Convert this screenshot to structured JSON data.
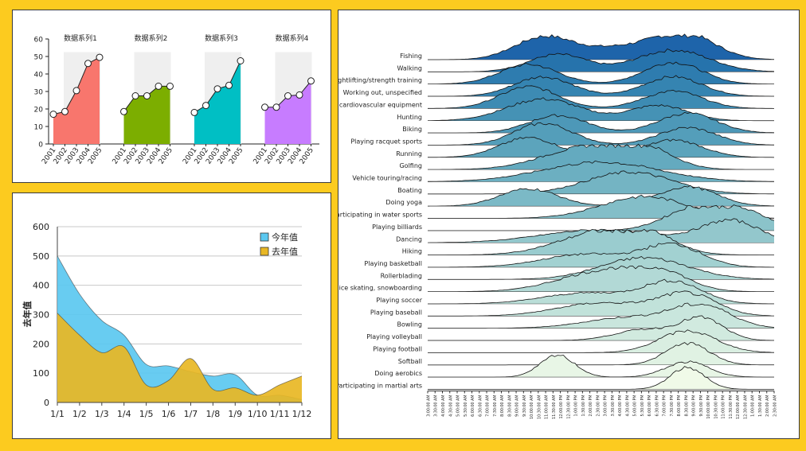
{
  "colors": {
    "background": "#FCCB1F"
  },
  "chart_data": [
    {
      "type": "area",
      "id": "small-multiples",
      "categories": [
        "2001",
        "2002",
        "2003",
        "2004",
        "2005"
      ],
      "series": [
        {
          "name": "数据系列1",
          "values": [
            17,
            18.5,
            30.5,
            46,
            49.5
          ],
          "color": "#F8766D"
        },
        {
          "name": "数据系列2",
          "values": [
            18.5,
            27.5,
            27.5,
            33,
            33
          ],
          "color": "#7CAE00"
        },
        {
          "name": "数据系列3",
          "values": [
            18,
            22,
            31.5,
            33.5,
            47.5
          ],
          "color": "#00BFC4"
        },
        {
          "name": "数据系列4",
          "values": [
            21,
            21,
            27.5,
            28,
            36
          ],
          "color": "#C77CFF"
        }
      ],
      "ylim": [
        0,
        60
      ],
      "yticks": [
        0,
        10,
        20,
        30,
        40,
        50,
        60
      ]
    },
    {
      "type": "area",
      "id": "monthly-area",
      "categories": [
        "1/1",
        "1/2",
        "1/3",
        "1/4",
        "1/5",
        "1/6",
        "1/7",
        "1/8",
        "1/9",
        "1/10",
        "1/11",
        "1/12"
      ],
      "series": [
        {
          "name": "今年值",
          "values": [
            500,
            370,
            280,
            230,
            130,
            125,
            105,
            90,
            95,
            25,
            25,
            10
          ],
          "color": "#5BC8F0"
        },
        {
          "name": "去年值",
          "values": [
            305,
            230,
            170,
            190,
            60,
            75,
            150,
            45,
            50,
            25,
            60,
            90
          ],
          "color": "#E8B724"
        }
      ],
      "ylabel": "去年值",
      "ylim": [
        0,
        600
      ],
      "yticks": [
        0,
        100,
        200,
        300,
        400,
        500,
        600
      ],
      "legend": "top-right"
    },
    {
      "type": "area",
      "id": "ridgeline",
      "title": "",
      "activities": [
        "Fishing",
        "Walking",
        "Weightlifting/strength training",
        "Working out, unspecified",
        "Using cardiovascular equipment",
        "Hunting",
        "Biking",
        "Playing racquet sports",
        "Running",
        "Golfing",
        "Vehicle touring/racing",
        "Boating",
        "Doing yoga",
        "Participating in water sports",
        "Playing billiards",
        "Dancing",
        "Hiking",
        "Playing basketball",
        "Rollerblading",
        "Skiing, ice skating, snowboarding",
        "Playing soccer",
        "Playing baseball",
        "Bowling",
        "Playing volleyball",
        "Playing football",
        "Softball",
        "Doing aerobics",
        "Participating in martial arts"
      ],
      "peaks": [
        [
          [
            8,
            2,
            1.0
          ],
          [
            18,
            2,
            1.0
          ],
          [
            14,
            3,
            0.6
          ]
        ],
        [
          [
            9,
            2,
            0.8
          ],
          [
            17,
            2.5,
            1.0
          ]
        ],
        [
          [
            7,
            2,
            0.9
          ],
          [
            17,
            2,
            1.0
          ]
        ],
        [
          [
            8,
            2,
            0.9
          ],
          [
            17,
            2,
            0.9
          ]
        ],
        [
          [
            7,
            2,
            1.0
          ],
          [
            17,
            2,
            0.8
          ]
        ],
        [
          [
            8,
            2.5,
            1.0
          ],
          [
            16,
            2,
            0.7
          ]
        ],
        [
          [
            9,
            2,
            0.8
          ],
          [
            18,
            2,
            0.9
          ]
        ],
        [
          [
            8,
            2,
            1.0
          ],
          [
            18,
            2,
            0.8
          ]
        ],
        [
          [
            7,
            2,
            0.9
          ],
          [
            17,
            2,
            0.8
          ]
        ],
        [
          [
            11,
            3,
            1.0
          ],
          [
            15,
            2,
            0.8
          ]
        ],
        [
          [
            12,
            4,
            0.9
          ]
        ],
        [
          [
            14,
            3,
            1.0
          ]
        ],
        [
          [
            7,
            2,
            0.8
          ],
          [
            18,
            2,
            0.9
          ]
        ],
        [
          [
            15,
            3,
            1.0
          ]
        ],
        [
          [
            21,
            2.5,
            1.0
          ],
          [
            18,
            2,
            0.6
          ]
        ],
        [
          [
            21,
            2,
            1.0
          ],
          [
            12,
            4,
            0.6
          ]
        ],
        [
          [
            12,
            3,
            1.0
          ],
          [
            15,
            2,
            0.7
          ]
        ],
        [
          [
            17,
            2,
            1.0
          ],
          [
            11,
            3,
            0.6
          ]
        ],
        [
          [
            15,
            3,
            1.0
          ]
        ],
        [
          [
            12,
            3,
            0.9
          ],
          [
            16,
            2,
            0.8
          ]
        ],
        [
          [
            17,
            2,
            1.0
          ],
          [
            11,
            3,
            0.5
          ]
        ],
        [
          [
            18,
            2,
            1.0
          ],
          [
            12,
            3,
            0.6
          ]
        ],
        [
          [
            19,
            2,
            1.0
          ],
          [
            14,
            3,
            0.5
          ]
        ],
        [
          [
            19,
            1.5,
            1.0
          ],
          [
            15,
            2,
            0.5
          ]
        ],
        [
          [
            18,
            2,
            1.0
          ]
        ],
        [
          [
            18,
            1.5,
            1.0
          ]
        ],
        [
          [
            9,
            1.2,
            1.0
          ],
          [
            18,
            1.5,
            0.7
          ]
        ],
        [
          [
            18,
            1.2,
            1.0
          ]
        ]
      ],
      "x_ticks": [
        "3:00:00 AM",
        "3:30:00 AM",
        "4:00:00 AM",
        "4:30:00 AM",
        "5:00:00 AM",
        "5:30:00 AM",
        "6:00:00 AM",
        "6:30:00 AM",
        "7:00:00 AM",
        "7:30:00 AM",
        "8:00:00 AM",
        "8:30:00 AM",
        "9:00:00 AM",
        "9:30:00 AM",
        "10:00:00 AM",
        "10:30:00 AM",
        "11:00:00 AM",
        "11:30:00 AM",
        "12:00:00 PM",
        "12:30:00 PM",
        "1:00:00 PM",
        "1:30:00 PM",
        "2:00:00 PM",
        "2:30:00 PM",
        "3:00:00 PM",
        "3:30:00 PM",
        "4:00:00 PM",
        "4:30:00 PM",
        "5:00:00 PM",
        "5:30:00 PM",
        "6:00:00 PM",
        "6:30:00 PM",
        "7:00:00 PM",
        "7:30:00 PM",
        "8:00:00 PM",
        "8:30:00 PM",
        "9:00:00 PM",
        "9:30:00 PM",
        "10:00:00 PM",
        "10:30:00 PM",
        "11:00:00 PM",
        "11:30:00 PM",
        "12:00:00 AM",
        "12:30:00 AM",
        "1:00:00 AM",
        "1:30:00 AM",
        "2:00:00 AM",
        "2:30:00 AM"
      ]
    }
  ]
}
